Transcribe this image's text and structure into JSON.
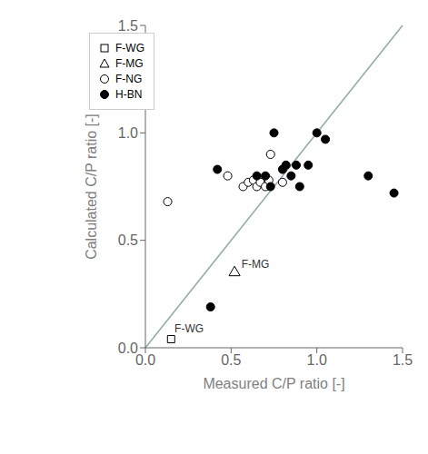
{
  "chart_data": {
    "type": "scatter",
    "xlabel": "Measured C/P ratio [-]",
    "ylabel": "Calculated C/P ratio [-]",
    "xlim": [
      0.0,
      1.5
    ],
    "ylim": [
      0.0,
      1.5
    ],
    "xticks": [
      {
        "value": 0.0,
        "label": "0.0"
      },
      0.5,
      {
        "value": 1.0,
        "label": "1.0"
      },
      1.5
    ],
    "yticks": [
      {
        "value": 0.0,
        "label": "0.0"
      },
      0.5,
      {
        "value": 1.0,
        "label": "1.0"
      },
      1.5
    ],
    "grid": false,
    "legend": "upper left",
    "series": [
      {
        "type": "line",
        "color": "#8faba8",
        "x": [
          0,
          1.5
        ],
        "values": [
          0,
          1.5
        ]
      },
      {
        "type": "scatter",
        "name": "F-WG",
        "marker": "open_square",
        "color": "#000000",
        "x": [
          0.15
        ],
        "values": [
          0.04
        ]
      },
      {
        "type": "scatter",
        "name": "F-MG",
        "marker": "open_triangle",
        "color": "#000000",
        "x": [
          0.52
        ],
        "values": [
          0.35
        ]
      },
      {
        "type": "scatter",
        "name": "F-NG",
        "marker": "open_circle",
        "color": "#000000",
        "x": [
          0.13,
          0.48,
          0.57,
          0.6,
          0.63,
          0.65,
          0.67,
          0.7,
          0.72,
          0.73,
          0.8
        ],
        "values": [
          0.68,
          0.8,
          0.75,
          0.77,
          0.78,
          0.75,
          0.77,
          0.75,
          0.78,
          0.9,
          0.77
        ]
      },
      {
        "type": "scatter",
        "name": "H-BN",
        "marker": "filled_circle",
        "color": "#000000",
        "x": [
          0.38,
          0.42,
          0.65,
          0.7,
          0.73,
          0.75,
          0.8,
          0.82,
          0.85,
          0.88,
          0.9,
          0.95,
          1.0,
          1.05,
          1.3,
          1.45
        ],
        "values": [
          0.19,
          0.83,
          0.8,
          0.8,
          0.75,
          1.0,
          0.83,
          0.85,
          0.8,
          0.85,
          0.75,
          0.85,
          1.0,
          0.97,
          0.8,
          0.72
        ]
      }
    ],
    "annotations": [
      {
        "text": "F-WG",
        "x": 0.17,
        "y": 0.06
      },
      {
        "text": "F-MG",
        "x": 0.56,
        "y": 0.36
      }
    ]
  }
}
